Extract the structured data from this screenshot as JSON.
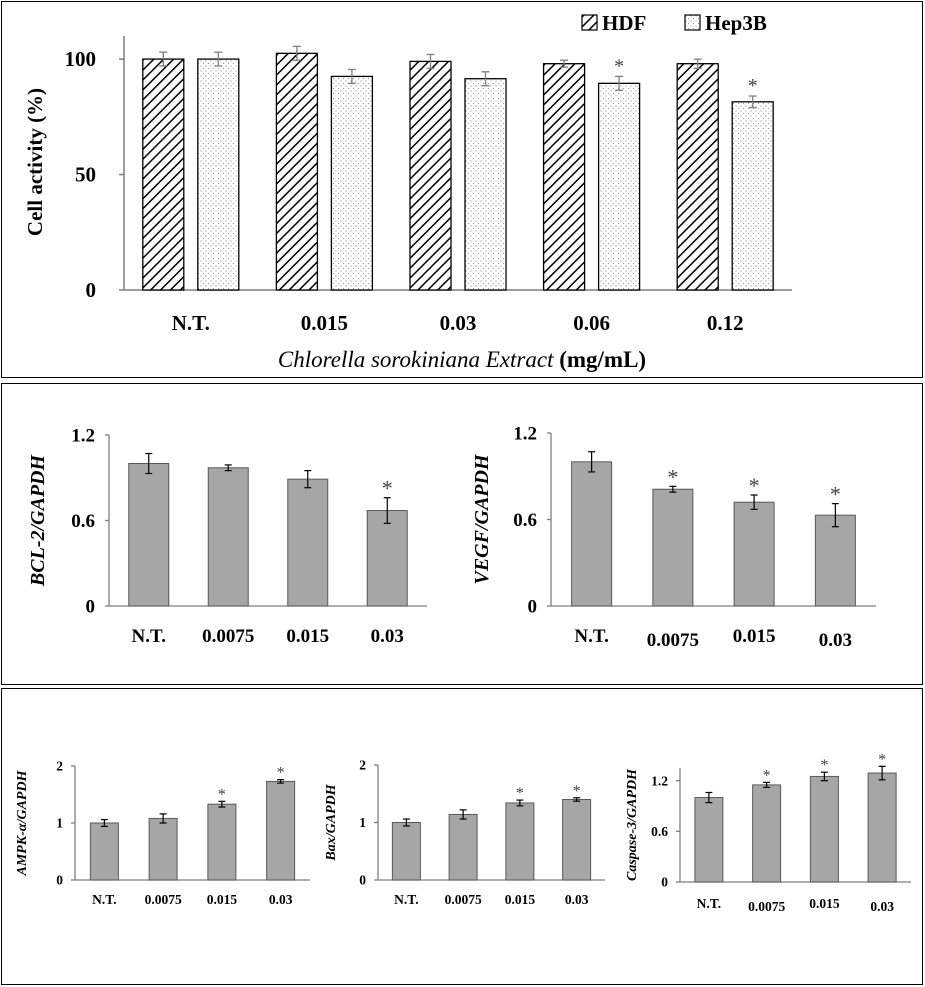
{
  "chart_data": [
    {
      "id": "cell-activity",
      "type": "bar",
      "ylabel": "Cell activity (%)",
      "xlabel_italic": "Chlorella sorokiniana Extract",
      "xlabel_unit": " (mg/mL)",
      "categories": [
        "N.T.",
        "0.015",
        "0.03",
        "0.06",
        "0.12"
      ],
      "ylim": [
        0,
        110
      ],
      "yticks": [
        0,
        50,
        100
      ],
      "legend_position": "top-right",
      "series": [
        {
          "name": "HDF",
          "pattern": "hatch",
          "values": [
            100,
            102.5,
            99,
            98,
            98
          ],
          "errors": [
            3,
            3,
            3,
            1.5,
            2
          ],
          "sig": [
            false,
            false,
            false,
            false,
            false
          ]
        },
        {
          "name": "Hep3B",
          "pattern": "dots",
          "values": [
            100,
            92.5,
            91.5,
            89.5,
            81.5
          ],
          "errors": [
            3,
            3,
            3,
            3,
            2.5
          ],
          "sig": [
            false,
            false,
            false,
            true,
            true
          ]
        }
      ]
    },
    {
      "id": "bcl2",
      "type": "bar",
      "ylabel": "BCL-2/GAPDH",
      "categories": [
        "N.T.",
        "0.0075",
        "0.015",
        "0.03"
      ],
      "ylim": [
        0,
        1.2
      ],
      "yticks": [
        "0",
        "0.6",
        "1.2"
      ],
      "ytick_values": [
        0,
        0.6,
        1.2
      ],
      "values": [
        1.0,
        0.97,
        0.89,
        0.67
      ],
      "errors": [
        0.07,
        0.02,
        0.06,
        0.09
      ],
      "sig": [
        false,
        false,
        false,
        true
      ]
    },
    {
      "id": "vegf",
      "type": "bar",
      "ylabel": "VEGF/GAPDH",
      "categories": [
        "N.T.",
        "0.0075",
        "0.015",
        "0.03"
      ],
      "ylim": [
        0,
        1.2
      ],
      "yticks": [
        "0",
        "0.6",
        "1.2"
      ],
      "ytick_values": [
        0,
        0.6,
        1.2
      ],
      "values": [
        1.0,
        0.81,
        0.72,
        0.63
      ],
      "errors": [
        0.07,
        0.02,
        0.05,
        0.08
      ],
      "sig": [
        false,
        true,
        true,
        true
      ]
    },
    {
      "id": "ampk",
      "type": "bar",
      "ylabel": "AMPK-α/GAPDH",
      "categories": [
        "N.T.",
        "0.0075",
        "0.015",
        "0.03"
      ],
      "ylim": [
        0,
        2
      ],
      "yticks": [
        "0",
        "1",
        "2"
      ],
      "ytick_values": [
        0,
        1,
        2
      ],
      "values": [
        1.0,
        1.08,
        1.33,
        1.73
      ],
      "errors": [
        0.06,
        0.08,
        0.05,
        0.03
      ],
      "sig": [
        false,
        false,
        true,
        true
      ]
    },
    {
      "id": "bax",
      "type": "bar",
      "ylabel": "Bax/GAPDH",
      "categories": [
        "N.T.",
        "0.0075",
        "0.015",
        "0.03"
      ],
      "ylim": [
        0,
        2
      ],
      "yticks": [
        "0",
        "1",
        "2"
      ],
      "ytick_values": [
        0,
        1,
        2
      ],
      "values": [
        1.0,
        1.14,
        1.34,
        1.4
      ],
      "errors": [
        0.06,
        0.08,
        0.05,
        0.03
      ],
      "sig": [
        false,
        false,
        true,
        true
      ]
    },
    {
      "id": "caspase3",
      "type": "bar",
      "ylabel": "Caspase-3/GAPDH",
      "categories": [
        "N.T.",
        "0.0075",
        "0.015",
        "0.03"
      ],
      "ylim": [
        0,
        1.35
      ],
      "yticks": [
        "0",
        "0.6",
        "1.2"
      ],
      "ytick_values": [
        0,
        0.6,
        1.2
      ],
      "values": [
        1.0,
        1.15,
        1.25,
        1.29
      ],
      "errors": [
        0.06,
        0.03,
        0.05,
        0.08
      ],
      "sig": [
        false,
        true,
        true,
        true
      ]
    }
  ]
}
